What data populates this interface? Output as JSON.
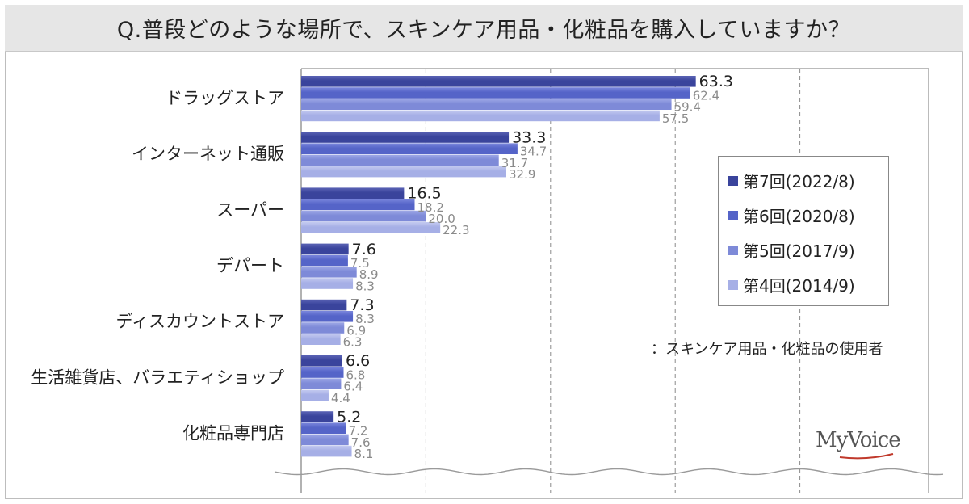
{
  "title": "Q.普段どのような場所で、スキンケア用品・化粧品を購入していますか？",
  "note": "：スキンケア用品・化粧品の使用者",
  "logo": "MyVoice",
  "colors": {
    "series": [
      "#3a449c",
      "#5564c8",
      "#7e8ad8",
      "#a6afe6"
    ],
    "highlight": [
      "#5a63b4",
      "#7a86dc",
      "#9ea8e6",
      "#c4caf0"
    ],
    "label_primary": "#222222",
    "label_secondary": "#8a8a8a",
    "grid": "#8a8a8a",
    "logo_accent": "#c0392b"
  },
  "chart_data": {
    "type": "bar",
    "orientation": "horizontal",
    "categories": [
      "ドラッグストア",
      "インターネット通販",
      "スーパー",
      "デパート",
      "ディスカウントストア",
      "生活雑貨店、バラエティショップ",
      "化粧品専門店"
    ],
    "series": [
      {
        "name": "第7回(2022/8)",
        "values": [
          63.3,
          33.3,
          16.5,
          7.6,
          7.3,
          6.6,
          5.2
        ]
      },
      {
        "name": "第6回(2020/8)",
        "values": [
          62.4,
          34.7,
          18.2,
          7.5,
          8.3,
          6.8,
          7.2
        ]
      },
      {
        "name": "第5回(2017/9)",
        "values": [
          59.4,
          31.7,
          20.0,
          8.9,
          6.9,
          6.4,
          7.6
        ]
      },
      {
        "name": "第4回(2014/9)",
        "values": [
          57.5,
          32.9,
          22.3,
          8.3,
          6.3,
          4.4,
          8.1
        ]
      }
    ],
    "value_labels": [
      [
        "63.3",
        "33.3",
        "16.5",
        "7.6",
        "7.3",
        "6.6",
        "5.2"
      ],
      [
        "62.4",
        "34.7",
        "18.2",
        "7.5",
        "8.3",
        "6.8",
        "7.2"
      ],
      [
        "59.4",
        "31.7",
        "20.0",
        "8.9",
        "6.9",
        "6.4",
        "7.6"
      ],
      [
        "57.5",
        "32.9",
        "22.3",
        "8.3",
        "6.3",
        "4.4",
        "8.1"
      ]
    ],
    "xlim": [
      0,
      100
    ],
    "grid": true,
    "axis_break": true,
    "legend_position": "right"
  }
}
